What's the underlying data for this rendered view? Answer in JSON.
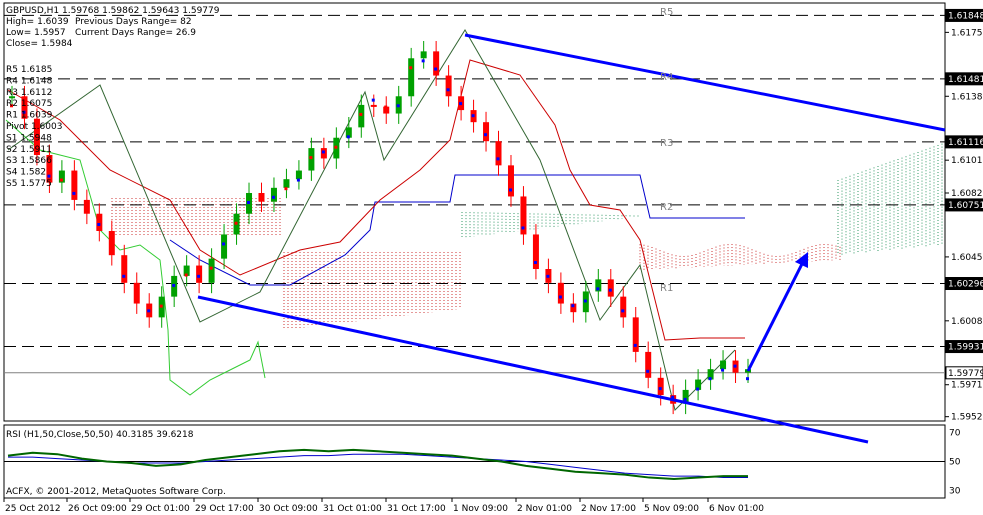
{
  "info": {
    "line1": "GBPUSD,H1  1.59768 1.59862 1.59643 1.59779",
    "high": "High= 1.6039",
    "prev_range": "Previous Days Range= 82",
    "low": "Low= 1.5957",
    "cur_range": "Current Days Range= 26.9",
    "close": "Close= 1.5984"
  },
  "pivots": [
    {
      "label": "R5 1.6185",
      "price": 1.6185
    },
    {
      "label": "R4 1.6148",
      "price": 1.6148
    },
    {
      "label": "R3 1.6112",
      "price": 1.6112
    },
    {
      "label": "R2 1.6075",
      "price": 1.6075
    },
    {
      "label": "R1 1.6039",
      "price": 1.6039
    },
    {
      "label": "Pivot 1.6003",
      "price": 1.6003
    },
    {
      "label": "S1 1.5948",
      "price": 1.5948
    },
    {
      "label": "S2 1.5911",
      "price": 1.5911
    },
    {
      "label": "S3 1.5866",
      "price": 1.5866
    },
    {
      "label": "S4 1.582",
      "price": 1.582
    },
    {
      "label": "S5 1.5775",
      "price": 1.5775
    }
  ],
  "level_labels": [
    "R5",
    "R4",
    "R3",
    "R2",
    "R1"
  ],
  "hlines": [
    {
      "value": 1.61848,
      "label": "1.61848",
      "color": "#000000"
    },
    {
      "value": 1.61481,
      "label": "1.61481",
      "color": "#000000"
    },
    {
      "value": 1.61116,
      "label": "1.61116",
      "color": "#000000"
    },
    {
      "value": 1.60751,
      "label": "1.60751",
      "color": "#000000"
    },
    {
      "value": 1.60296,
      "label": "1.60296",
      "color": "#000000"
    },
    {
      "value": 1.59931,
      "label": "1.59931",
      "color": "#000000"
    },
    {
      "value": 1.59779,
      "label": "1.59779",
      "color": "#ffffff"
    }
  ],
  "rsi": {
    "label": "RSI (H1,50,Close,50,50) 40.3185 39.6218",
    "value_label": "50"
  },
  "copyright": "ACFX, © 2001-2012, MetaQuotes Software Corp.",
  "chart_data": {
    "type": "line",
    "symbol": "GBPUSD",
    "timeframe": "H1",
    "price_axis_ticks": [
      "1.61848",
      "1.61750",
      "1.61481",
      "1.61380",
      "1.61116",
      "1.61010",
      "1.60820",
      "1.60751",
      "1.60450",
      "1.60296",
      "1.60080",
      "1.59931",
      "1.59710",
      "1.59525"
    ],
    "y_ticks": [
      1.6175,
      1.6138,
      1.6101,
      1.6082,
      1.6045,
      1.6008,
      1.5971,
      1.59525
    ],
    "ylim": [
      1.595,
      1.6192
    ],
    "x_tick_labels": [
      "25 Oct 2012",
      "26 Oct 09:00",
      "29 Oct 01:00",
      "29 Oct 17:00",
      "30 Oct 09:00",
      "31 Oct 01:00",
      "31 Oct 17:00",
      "1 Nov 09:00",
      "2 Nov 01:00",
      "2 Nov 17:00",
      "5 Nov 09:00",
      "6 Nov 01:00"
    ],
    "rsi_ticks": [
      "70",
      "50",
      "30"
    ],
    "close_path": [
      1.6138,
      1.6125,
      1.6104,
      1.6088,
      1.6095,
      1.6078,
      1.607,
      1.606,
      1.6046,
      1.603,
      1.6018,
      1.601,
      1.6022,
      1.6034,
      1.604,
      1.603,
      1.6044,
      1.6058,
      1.607,
      1.6082,
      1.6077,
      1.6085,
      1.609,
      1.6095,
      1.6108,
      1.6102,
      1.6114,
      1.612,
      1.6133,
      1.6132,
      1.6128,
      1.6138,
      1.616,
      1.6164,
      1.615,
      1.6138,
      1.613,
      1.6123,
      1.6112,
      1.6098,
      1.608,
      1.6058,
      1.6038,
      1.603,
      1.6018,
      1.6013,
      1.6025,
      1.6032,
      1.6022,
      1.601,
      1.599,
      1.5975,
      1.5965,
      1.596,
      1.5968,
      1.5974,
      1.598,
      1.5985,
      1.5978,
      1.598
    ],
    "rsi_values": [
      54,
      56,
      55,
      52,
      50,
      49,
      47,
      48,
      51,
      53,
      55,
      57,
      58,
      57,
      58,
      57,
      56,
      55,
      54,
      52,
      50,
      47,
      45,
      43,
      42,
      41,
      39,
      38,
      39,
      40,
      40
    ],
    "rsi_ma_values": [
      53,
      53,
      52,
      51,
      50,
      49,
      49,
      49,
      50,
      51,
      52,
      53,
      54,
      54,
      55,
      55,
      55,
      54,
      53,
      52,
      51,
      50,
      48,
      46,
      44,
      42,
      41,
      40,
      40,
      39,
      39
    ]
  }
}
